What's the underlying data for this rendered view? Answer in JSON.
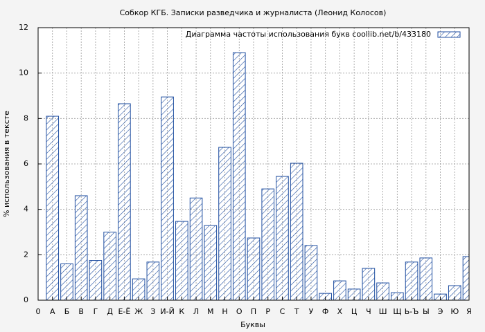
{
  "chart_data": {
    "type": "bar",
    "title": "Собкор КГБ. Записки разведчика и журналиста (Леонид Колосов)",
    "xlabel": "Буквы",
    "ylabel": "% использования в тексте",
    "x": [
      1,
      2,
      3,
      4,
      5,
      6,
      7,
      8,
      9,
      10,
      11,
      12,
      13,
      14,
      15,
      16,
      17,
      18,
      19,
      20,
      21,
      22,
      23,
      24,
      25,
      26,
      27,
      28,
      29,
      30
    ],
    "series": [
      {
        "name": "Диаграмма частоты использования букв  coollib.net/b/433180",
        "color": "#1f4ea0",
        "values": [
          8.1,
          1.6,
          4.6,
          1.75,
          3.0,
          8.65,
          0.94,
          1.68,
          8.95,
          3.47,
          4.5,
          3.29,
          6.73,
          10.9,
          2.74,
          4.9,
          5.45,
          6.03,
          2.41,
          0.3,
          0.85,
          0.49,
          1.4,
          0.76,
          0.33,
          1.68,
          1.86,
          0.27,
          0.64,
          1.92
        ]
      }
    ],
    "xlim": [
      0,
      30
    ],
    "xticks": [
      0,
      {
        "value": 1,
        "label": "А"
      },
      {
        "value": 2,
        "label": "Б"
      },
      {
        "value": 3,
        "label": "В"
      },
      {
        "value": 4,
        "label": "Г"
      },
      {
        "value": 5,
        "label": "Д"
      },
      {
        "value": 6,
        "label": "Е-Ё"
      },
      {
        "value": 7,
        "label": "Ж"
      },
      {
        "value": 8,
        "label": "З"
      },
      {
        "value": 9,
        "label": "И-Й"
      },
      {
        "value": 10,
        "label": "К"
      },
      {
        "value": 11,
        "label": "Л"
      },
      {
        "value": 12,
        "label": "М"
      },
      {
        "value": 13,
        "label": "Н"
      },
      {
        "value": 14,
        "label": "О"
      },
      {
        "value": 15,
        "label": "П"
      },
      {
        "value": 16,
        "label": "Р"
      },
      {
        "value": 17,
        "label": "С"
      },
      {
        "value": 18,
        "label": "Т"
      },
      {
        "value": 19,
        "label": "У"
      },
      {
        "value": 20,
        "label": "Ф"
      },
      {
        "value": 21,
        "label": "Х"
      },
      {
        "value": 22,
        "label": "Ц"
      },
      {
        "value": 23,
        "label": "Ч"
      },
      {
        "value": 24,
        "label": "Ш"
      },
      {
        "value": 25,
        "label": "Щ"
      },
      {
        "value": 26,
        "label": "Ь-Ъ"
      },
      {
        "value": 27,
        "label": "Ы"
      },
      {
        "value": 28,
        "label": "Э"
      },
      {
        "value": 29,
        "label": "Ю"
      },
      {
        "value": 30,
        "label": "Я"
      }
    ],
    "ylim": [
      0,
      12
    ],
    "yticks": [
      0,
      2,
      4,
      6,
      8,
      10,
      12
    ],
    "grid": true,
    "legend": "upper-right"
  }
}
